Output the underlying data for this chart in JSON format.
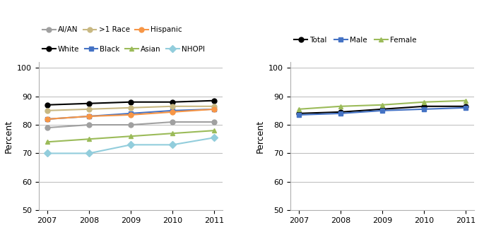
{
  "years": [
    2007,
    2008,
    2009,
    2010,
    2011
  ],
  "left_chart": {
    "series": [
      {
        "label": "White",
        "color": "#000000",
        "marker": "o",
        "markerfc": "#000000",
        "values": [
          87,
          87.5,
          88,
          88,
          88.5
        ]
      },
      {
        "label": "Black",
        "color": "#4472C4",
        "marker": "s",
        "markerfc": "#4472C4",
        "values": [
          82,
          83,
          84,
          85,
          85.5
        ]
      },
      {
        "label": "Asian",
        "color": "#9BBB59",
        "marker": "^",
        "markerfc": "#9BBB59",
        "values": [
          74,
          75,
          76,
          77,
          78
        ]
      },
      {
        "label": "NHOPI",
        "color": "#92CDDC",
        "marker": "D",
        "markerfc": "#92CDDC",
        "values": [
          70,
          70,
          73,
          73,
          75.5
        ]
      },
      {
        "label": "AI/AN",
        "color": "#A0A0A0",
        "marker": "o",
        "markerfc": "#A0A0A0",
        "values": [
          79,
          80,
          80,
          81,
          81
        ]
      },
      {
        "label": ">1 Race",
        "color": "#C8B882",
        "marker": "o",
        "markerfc": "#C8B882",
        "values": [
          85,
          85.5,
          86,
          86.5,
          86.5
        ]
      },
      {
        "label": "Hispanic",
        "color": "#F79646",
        "marker": "o",
        "markerfc": "#F79646",
        "values": [
          82,
          83,
          83.5,
          84.5,
          85.5
        ]
      }
    ],
    "ylabel": "Percent",
    "ylim": [
      50,
      102
    ],
    "yticks": [
      50,
      60,
      70,
      80,
      90,
      100
    ]
  },
  "right_chart": {
    "series": [
      {
        "label": "Total",
        "color": "#000000",
        "marker": "o",
        "markerfc": "#000000",
        "values": [
          84,
          84.5,
          85.5,
          86.5,
          86.5
        ]
      },
      {
        "label": "Male",
        "color": "#4472C4",
        "marker": "s",
        "markerfc": "#4472C4",
        "values": [
          83.5,
          84,
          85,
          85.5,
          86
        ]
      },
      {
        "label": "Female",
        "color": "#9BBB59",
        "marker": "^",
        "markerfc": "#9BBB59",
        "values": [
          85.5,
          86.5,
          87,
          88,
          88.5
        ]
      }
    ],
    "ylabel": "Percent",
    "ylim": [
      50,
      102
    ],
    "yticks": [
      50,
      60,
      70,
      80,
      90,
      100
    ]
  },
  "legend_left_row1": [
    "White",
    "Black",
    "Asian",
    "NHOPI"
  ],
  "legend_left_row2": [
    "AI/AN",
    ">1 Race",
    "Hispanic"
  ],
  "legend_right": [
    "Total",
    "Male",
    "Female"
  ],
  "line_width": 1.5,
  "marker_size": 5,
  "fig_width": 6.85,
  "fig_height": 3.39,
  "dpi": 100
}
